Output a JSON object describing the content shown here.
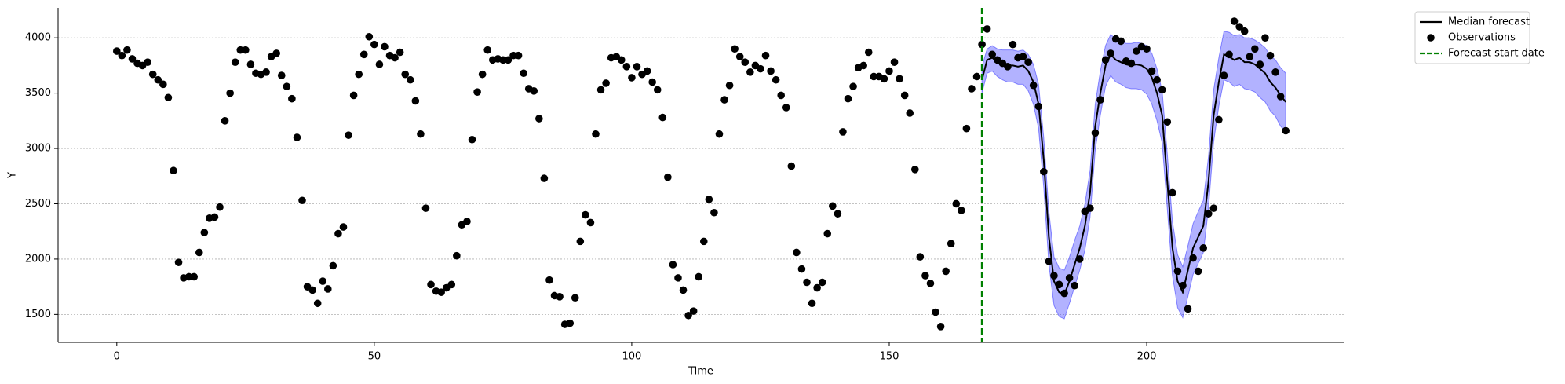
{
  "chart_data": {
    "type": "forecast",
    "x_label": "Time",
    "y_label": "Y",
    "xlim": [
      -11.4,
      238.4
    ],
    "ylim": [
      1247,
      4271
    ],
    "xticks": [
      0,
      50,
      100,
      150,
      200
    ],
    "yticks": [
      1500,
      2000,
      2500,
      3000,
      3500,
      4000
    ],
    "grid": true,
    "legend": "outside-upper-right",
    "series": [
      {
        "name": "Median forecast",
        "kind": "line",
        "color": "#000000",
        "x": [
          168,
          169,
          170,
          171,
          172,
          173,
          174,
          175,
          176,
          177,
          178,
          179,
          180,
          181,
          182,
          183,
          184,
          185,
          186,
          187,
          188,
          189,
          190,
          191,
          192,
          193,
          194,
          195,
          196,
          197,
          198,
          199,
          200,
          201,
          202,
          203,
          204,
          205,
          206,
          207,
          208,
          209,
          210,
          211,
          212,
          213,
          214,
          215,
          216,
          217,
          218,
          219,
          220,
          221,
          222,
          223,
          224,
          225,
          226,
          227
        ],
        "values": [
          3620,
          3800,
          3820,
          3780,
          3760,
          3750,
          3750,
          3740,
          3750,
          3700,
          3600,
          3400,
          2900,
          2200,
          1800,
          1700,
          1680,
          1800,
          1950,
          2100,
          2300,
          2600,
          3200,
          3500,
          3750,
          3850,
          3800,
          3780,
          3760,
          3750,
          3760,
          3750,
          3720,
          3640,
          3500,
          3300,
          2700,
          2100,
          1800,
          1700,
          1900,
          2100,
          2200,
          2300,
          2700,
          3300,
          3600,
          3850,
          3830,
          3800,
          3820,
          3780,
          3780,
          3760,
          3720,
          3680,
          3600,
          3550,
          3480,
          3420
        ]
      },
      {
        "name": "Observations",
        "kind": "scatter",
        "color": "#000000",
        "x": [
          0,
          1,
          2,
          3,
          4,
          5,
          6,
          7,
          8,
          9,
          10,
          11,
          12,
          13,
          14,
          15,
          16,
          17,
          18,
          19,
          20,
          21,
          22,
          23,
          24,
          25,
          26,
          27,
          28,
          29,
          30,
          31,
          32,
          33,
          34,
          35,
          36,
          37,
          38,
          39,
          40,
          41,
          42,
          43,
          44,
          45,
          46,
          47,
          48,
          49,
          50,
          51,
          52,
          53,
          54,
          55,
          56,
          57,
          58,
          59,
          60,
          61,
          62,
          63,
          64,
          65,
          66,
          67,
          68,
          69,
          70,
          71,
          72,
          73,
          74,
          75,
          76,
          77,
          78,
          79,
          80,
          81,
          82,
          83,
          84,
          85,
          86,
          87,
          88,
          89,
          90,
          91,
          92,
          93,
          94,
          95,
          96,
          97,
          98,
          99,
          100,
          101,
          102,
          103,
          104,
          105,
          106,
          107,
          108,
          109,
          110,
          111,
          112,
          113,
          114,
          115,
          116,
          117,
          118,
          119,
          120,
          121,
          122,
          123,
          124,
          125,
          126,
          127,
          128,
          129,
          130,
          131,
          132,
          133,
          134,
          135,
          136,
          137,
          138,
          139,
          140,
          141,
          142,
          143,
          144,
          145,
          146,
          147,
          148,
          149,
          150,
          151,
          152,
          153,
          154,
          155,
          156,
          157,
          158,
          159,
          160,
          161,
          162,
          163,
          164,
          165,
          166,
          167,
          168,
          169,
          170,
          171,
          172,
          173,
          174,
          175,
          176,
          177,
          178,
          179,
          180,
          181,
          182,
          183,
          184,
          185,
          186,
          187,
          188,
          189,
          190,
          191,
          192,
          193,
          194,
          195,
          196,
          197,
          198,
          199,
          200,
          201,
          202,
          203,
          204,
          205,
          206,
          207,
          208,
          209,
          210,
          211,
          212,
          213,
          214,
          215,
          216,
          217,
          218,
          219,
          220,
          221,
          222,
          223,
          224,
          225,
          226,
          227
        ],
        "values": [
          3880,
          3840,
          3890,
          3810,
          3770,
          3750,
          3780,
          3670,
          3620,
          3580,
          3460,
          2800,
          1970,
          1830,
          1840,
          1840,
          2060,
          2240,
          2370,
          2380,
          2470,
          3250,
          3500,
          3780,
          3890,
          3890,
          3760,
          3680,
          3670,
          3690,
          3830,
          3860,
          3660,
          3560,
          3450,
          3100,
          2530,
          1750,
          1720,
          1600,
          1800,
          1730,
          1940,
          2230,
          2290,
          3120,
          3480,
          3670,
          3850,
          4010,
          3940,
          3760,
          3920,
          3840,
          3820,
          3870,
          3670,
          3620,
          3430,
          3130,
          2460,
          1770,
          1710,
          1700,
          1740,
          1770,
          2030,
          2310,
          2340,
          3080,
          3510,
          3670,
          3890,
          3800,
          3810,
          3800,
          3800,
          3840,
          3840,
          3680,
          3540,
          3520,
          3270,
          2730,
          1810,
          1670,
          1660,
          1410,
          1420,
          1650,
          2160,
          2400,
          2330,
          3130,
          3530,
          3590,
          3820,
          3830,
          3800,
          3740,
          3640,
          3740,
          3670,
          3700,
          3600,
          3530,
          3280,
          2740,
          1950,
          1830,
          1720,
          1490,
          1530,
          1840,
          2160,
          2540,
          2420,
          3130,
          3440,
          3570,
          3900,
          3830,
          3780,
          3690,
          3750,
          3720,
          3840,
          3700,
          3620,
          3480,
          3370,
          2840,
          2060,
          1910,
          1790,
          1600,
          1740,
          1790,
          2230,
          2480,
          2410,
          3150,
          3450,
          3560,
          3730,
          3750,
          3870,
          3650,
          3650,
          3630,
          3700,
          3780,
          3630,
          3480,
          3320,
          2810,
          2020,
          1850,
          1780,
          1520,
          1390,
          1890,
          2140,
          2500,
          2440,
          3180,
          3540,
          3650,
          3940,
          4080,
          3850,
          3800,
          3770,
          3740,
          3940,
          3820,
          3830,
          3780,
          3570,
          3380,
          2790,
          1980,
          1850,
          1770,
          1690,
          1830,
          1760,
          2000,
          2430,
          2460,
          3140,
          3440,
          3800,
          3860,
          3990,
          3970,
          3790,
          3770,
          3880,
          3920,
          3900,
          3700,
          3620,
          3530,
          3240,
          2600,
          1890,
          1760,
          1550,
          2010,
          1890,
          2100,
          2410,
          2460,
          3260,
          3660,
          3850,
          4150,
          4100,
          4060,
          3830,
          3900,
          3760,
          4000,
          3840,
          3690,
          3470,
          3160
        ]
      }
    ],
    "band": {
      "color": "#0000ff",
      "x": [
        168,
        169,
        170,
        171,
        172,
        173,
        174,
        175,
        176,
        177,
        178,
        179,
        180,
        181,
        182,
        183,
        184,
        185,
        186,
        187,
        188,
        189,
        190,
        191,
        192,
        193,
        194,
        195,
        196,
        197,
        198,
        199,
        200,
        201,
        202,
        203,
        204,
        205,
        206,
        207,
        208,
        209,
        210,
        211,
        212,
        213,
        214,
        215,
        216,
        217,
        218,
        219,
        220,
        221,
        222,
        223,
        224,
        225,
        226,
        227
      ],
      "lower": [
        3500,
        3680,
        3700,
        3650,
        3620,
        3600,
        3600,
        3580,
        3580,
        3520,
        3400,
        3180,
        2650,
        1950,
        1580,
        1480,
        1460,
        1600,
        1750,
        1900,
        2080,
        2380,
        2980,
        3300,
        3560,
        3660,
        3600,
        3580,
        3550,
        3540,
        3540,
        3530,
        3490,
        3400,
        3250,
        3050,
        2450,
        1850,
        1560,
        1470,
        1660,
        1860,
        1960,
        2060,
        2460,
        3060,
        3380,
        3620,
        3600,
        3560,
        3580,
        3540,
        3530,
        3510,
        3460,
        3420,
        3340,
        3290,
        3200,
        3150
      ],
      "upper": [
        3740,
        3900,
        3930,
        3900,
        3890,
        3890,
        3890,
        3880,
        3890,
        3850,
        3760,
        3580,
        3100,
        2430,
        2020,
        1920,
        1900,
        2020,
        2170,
        2300,
        2500,
        2800,
        3400,
        3700,
        3930,
        4030,
        3990,
        3970,
        3950,
        3950,
        3960,
        3950,
        3930,
        3860,
        3720,
        3520,
        2950,
        2340,
        2040,
        1930,
        2120,
        2320,
        2430,
        2530,
        2930,
        3530,
        3820,
        4060,
        4050,
        4020,
        4030,
        4000,
        4000,
        3980,
        3950,
        3910,
        3840,
        3800,
        3730,
        3680
      ]
    },
    "vline": {
      "name": "Forecast start date",
      "x": 168,
      "color": "#008000"
    }
  }
}
